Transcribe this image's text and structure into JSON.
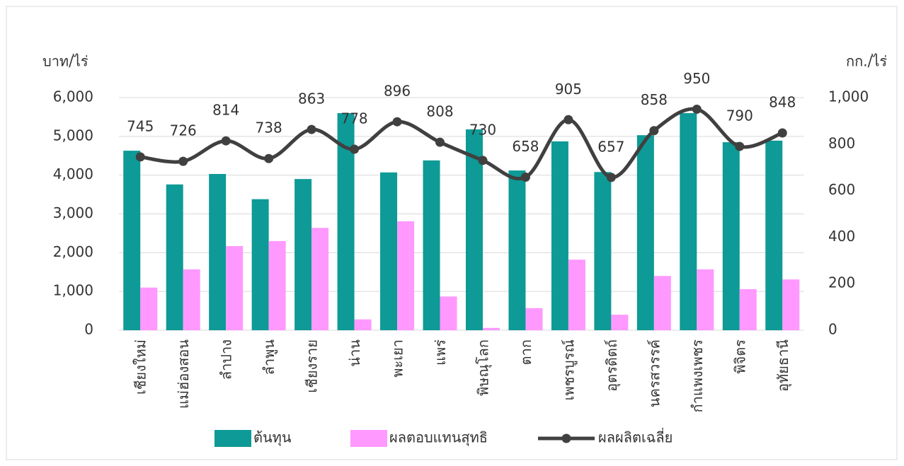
{
  "chart_data": {
    "type": "bar_line",
    "categories": [
      "เชียงใหม่",
      "แม่ฮ่องสอน",
      "ลำปาง",
      "ลำพูน",
      "เชียงราย",
      "น่าน",
      "พะเยา",
      "แพร่",
      "พิษณุโลก",
      "ตาก",
      "เพชรบูรณ์",
      "อุตรดิตถ์",
      "นครสวรรค์",
      "กำแพงเพชร",
      "พิจิตร",
      "อุทัยธานี"
    ],
    "ylabel": "บาท/ไร่",
    "y2label": "กก./ไร่",
    "ylim": [
      0,
      6000
    ],
    "yticks": [
      0,
      {
        "value": 1000,
        "label": "1,000"
      },
      {
        "value": 2000,
        "label": "2,000"
      },
      {
        "value": 3000,
        "label": "3,000"
      },
      {
        "value": 4000,
        "label": "4,000"
      },
      {
        "value": 5000,
        "label": "5,000"
      },
      {
        "value": 6000,
        "label": "6,000"
      }
    ],
    "y2lim": [
      0,
      1000
    ],
    "y2ticks": [
      0,
      200,
      400,
      600,
      800,
      {
        "value": 1000,
        "label": "1,000"
      }
    ],
    "grid": true,
    "legend": "bottom",
    "series": [
      {
        "name": "ต้นทุน",
        "type": "bar",
        "color": "#0e9a96",
        "values": [
          4630,
          3760,
          4030,
          3380,
          3900,
          5600,
          4070,
          4380,
          5180,
          4120,
          4870,
          4080,
          5030,
          5600,
          4850,
          4890
        ]
      },
      {
        "name": "ผลตอบแทนสุทธิ",
        "type": "bar",
        "color": "#ff99ff",
        "values": [
          1100,
          1570,
          2170,
          2300,
          2640,
          280,
          2810,
          870,
          60,
          570,
          1820,
          400,
          1400,
          1570,
          1060,
          1310
        ]
      },
      {
        "name": "ผลผลิตเฉลี่ย",
        "type": "line",
        "axis": "y2",
        "color": "#404040",
        "values": [
          745,
          726,
          814,
          738,
          863,
          778,
          896,
          808,
          730,
          658,
          905,
          657,
          858,
          950,
          790,
          848
        ]
      }
    ]
  }
}
